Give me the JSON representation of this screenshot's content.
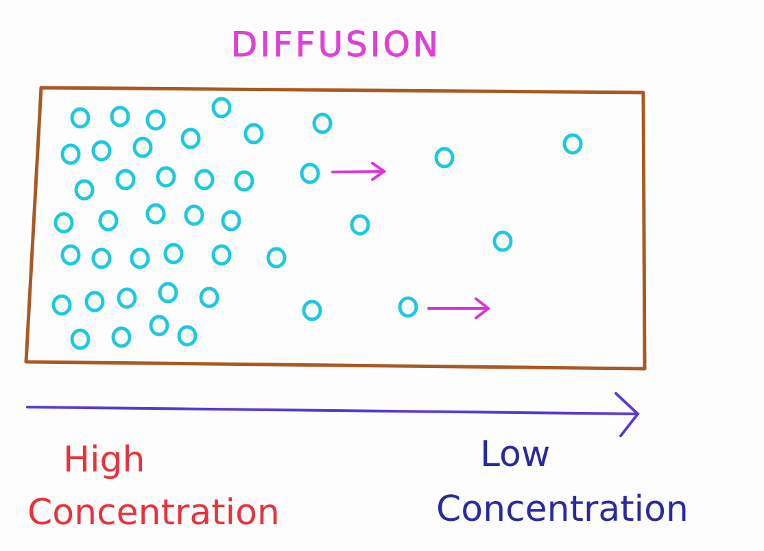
{
  "title": "DIFFUSION",
  "labels": {
    "high_line1": "High",
    "high_line2": "Concentration",
    "low_line1": "Low",
    "low_line2": "Concentration"
  },
  "colors": {
    "title": "#e040d8",
    "container": "#a85a22",
    "particle": "#1ec8e0",
    "movement_arrow": "#e030d8",
    "gradient_arrow": "#5a3ad0",
    "high_text": "#e8323c",
    "low_text": "#2a2aa0"
  }
}
